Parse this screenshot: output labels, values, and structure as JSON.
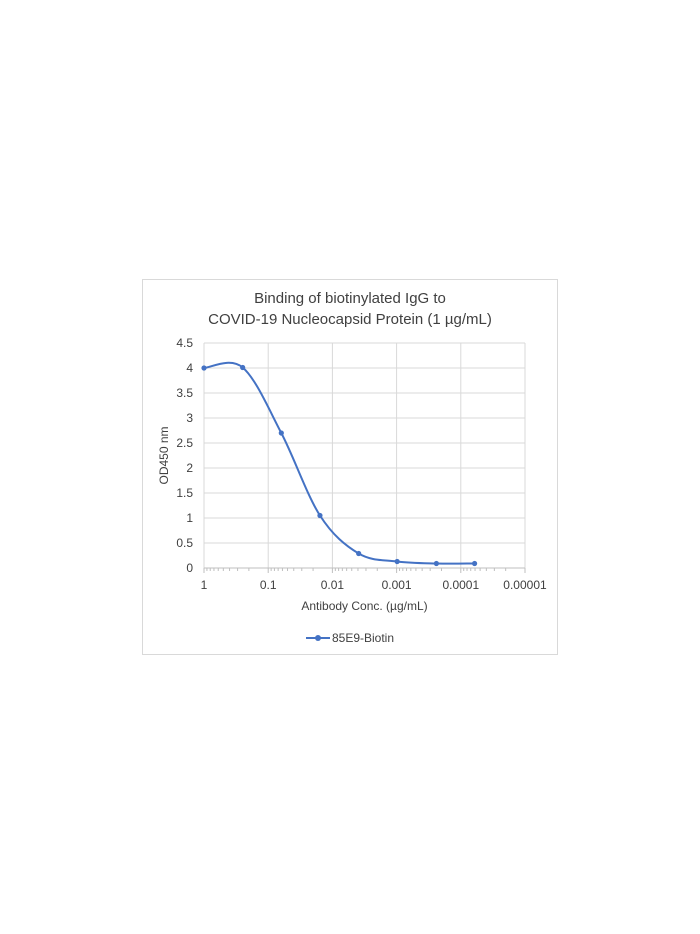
{
  "chart_data": {
    "type": "line",
    "title": [
      "Binding of biotinylated IgG to",
      "COVID-19 Nucleocapsid Protein (1 µg/mL)"
    ],
    "xlabel": "Antibody Conc. (µg/mL)",
    "ylabel": "OD450 nm",
    "x_scale": "log",
    "x_reversed": true,
    "xlim": [
      1,
      1e-05
    ],
    "ylim": [
      0,
      4.5
    ],
    "y_ticks": [
      0,
      0.5,
      1,
      1.5,
      2,
      2.5,
      3,
      3.5,
      4,
      4.5
    ],
    "y_tick_labels": [
      "0",
      "0.5",
      "1",
      "1.5",
      "2",
      "2.5",
      "3",
      "3.5",
      "4",
      "4.5"
    ],
    "x_ticks": [
      1,
      0.1,
      0.01,
      0.001,
      0.0001,
      1e-05
    ],
    "x_tick_labels": [
      "1",
      "0.1",
      "0.01",
      "0.001",
      "0.0001",
      "0.00001"
    ],
    "grid": true,
    "legend_position": "bottom",
    "smooth": true,
    "series": [
      {
        "name": "85E9-Biotin",
        "color": "#4472c4",
        "x": [
          1,
          0.25,
          0.0625,
          0.015625,
          0.0039,
          0.00098,
          0.00024,
          6.1e-05
        ],
        "y": [
          4.0,
          4.01,
          2.7,
          1.05,
          0.29,
          0.13,
          0.09,
          0.09
        ]
      }
    ]
  }
}
